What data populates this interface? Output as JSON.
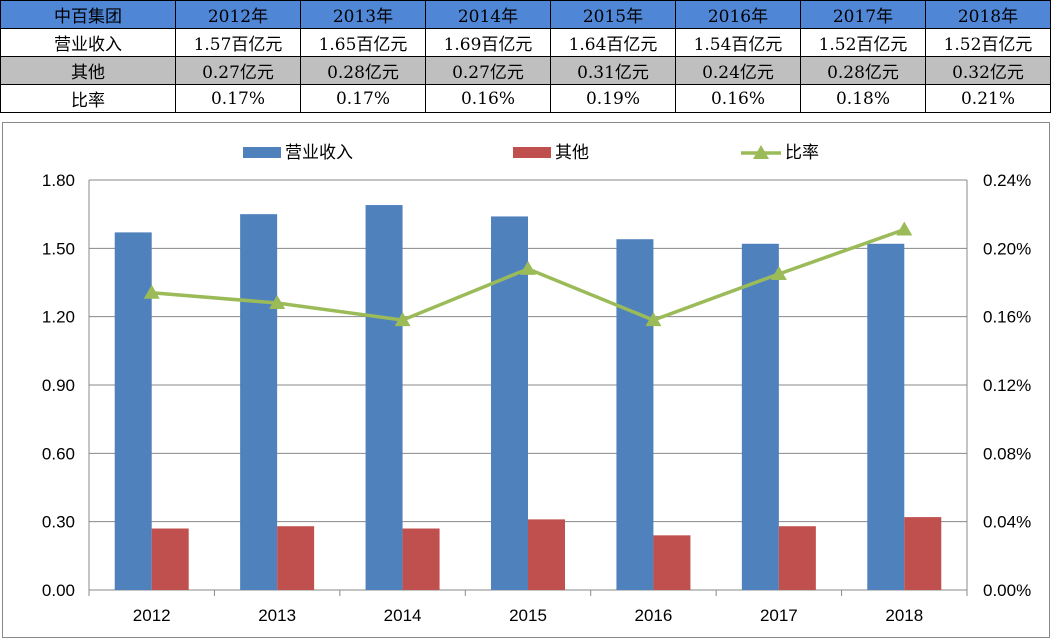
{
  "table": {
    "header": [
      "中百集团",
      "2012年",
      "2013年",
      "2014年",
      "2015年",
      "2016年",
      "2017年",
      "2018年"
    ],
    "rows": [
      [
        "营业收入",
        "1.57百亿元",
        "1.65百亿元",
        "1.69百亿元",
        "1.64百亿元",
        "1.54百亿元",
        "1.52百亿元",
        "1.52百亿元"
      ],
      [
        "其他",
        "0.27亿元",
        "0.28亿元",
        "0.27亿元",
        "0.31亿元",
        "0.24亿元",
        "0.28亿元",
        "0.32亿元"
      ],
      [
        "比率",
        "0.17%",
        "0.17%",
        "0.16%",
        "0.19%",
        "0.16%",
        "0.18%",
        "0.21%"
      ]
    ]
  },
  "chart_data": {
    "type": "bar+line",
    "categories": [
      "2012",
      "2013",
      "2014",
      "2015",
      "2016",
      "2017",
      "2018"
    ],
    "series": [
      {
        "name": "营业收入",
        "type": "bar",
        "axis": "left",
        "color": "#4f81bd",
        "values": [
          1.57,
          1.65,
          1.69,
          1.64,
          1.54,
          1.52,
          1.52
        ]
      },
      {
        "name": "其他",
        "type": "bar",
        "axis": "left",
        "color": "#c0504d",
        "values": [
          0.27,
          0.28,
          0.27,
          0.31,
          0.24,
          0.28,
          0.32
        ]
      },
      {
        "name": "比率",
        "type": "line",
        "axis": "right",
        "color": "#9bbb59",
        "marker": "triangle",
        "values": [
          0.174,
          0.168,
          0.158,
          0.188,
          0.158,
          0.185,
          0.211
        ]
      }
    ],
    "ylim": [
      0,
      1.8
    ],
    "yticks": [
      "0.00",
      "0.30",
      "0.60",
      "0.90",
      "1.20",
      "1.50",
      "1.80"
    ],
    "y2lim": [
      0,
      0.24
    ],
    "y2ticks": [
      "0.00%",
      "0.04%",
      "0.08%",
      "0.12%",
      "0.16%",
      "0.20%",
      "0.24%"
    ],
    "grid": true,
    "legend": "top"
  }
}
